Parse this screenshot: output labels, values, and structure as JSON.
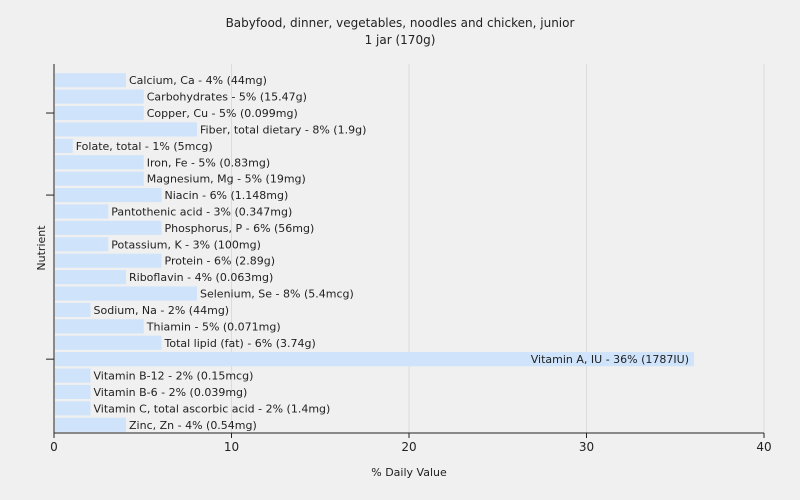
{
  "chart_data": {
    "type": "bar",
    "orientation": "horizontal",
    "title": "Babyfood, dinner, vegetables, noodles and chicken, junior",
    "subtitle": "1 jar (170g)",
    "xlabel": "% Daily Value",
    "ylabel": "Nutrient",
    "xlim": [
      0,
      40
    ],
    "xticks": [
      0,
      10,
      20,
      30,
      40
    ],
    "grid": true,
    "bar_color": "#cfe3fb",
    "categories": [
      "Calcium, Ca",
      "Carbohydrates",
      "Copper, Cu",
      "Fiber, total dietary",
      "Folate, total",
      "Iron, Fe",
      "Magnesium, Mg",
      "Niacin",
      "Pantothenic acid",
      "Phosphorus, P",
      "Potassium, K",
      "Protein",
      "Riboflavin",
      "Selenium, Se",
      "Sodium, Na",
      "Thiamin",
      "Total lipid (fat)",
      "Vitamin A, IU",
      "Vitamin B-12",
      "Vitamin B-6",
      "Vitamin C, total ascorbic acid",
      "Zinc, Zn"
    ],
    "values": [
      4,
      5,
      5,
      8,
      1,
      5,
      5,
      6,
      3,
      6,
      3,
      6,
      4,
      8,
      2,
      5,
      6,
      36,
      2,
      2,
      2,
      4
    ],
    "labels": [
      "Calcium, Ca - 4% (44mg)",
      "Carbohydrates - 5% (15.47g)",
      "Copper, Cu - 5% (0.099mg)",
      "Fiber, total dietary - 8% (1.9g)",
      "Folate, total - 1% (5mcg)",
      "Iron, Fe - 5% (0.83mg)",
      "Magnesium, Mg - 5% (19mg)",
      "Niacin - 6% (1.148mg)",
      "Pantothenic acid - 3% (0.347mg)",
      "Phosphorus, P - 6% (56mg)",
      "Potassium, K - 3% (100mg)",
      "Protein - 6% (2.89g)",
      "Riboflavin - 4% (0.063mg)",
      "Selenium, Se - 8% (5.4mcg)",
      "Sodium, Na - 2% (44mg)",
      "Thiamin - 5% (0.071mg)",
      "Total lipid (fat) - 6% (3.74g)",
      "Vitamin A, IU - 36% (1787IU)",
      "Vitamin B-12 - 2% (0.15mcg)",
      "Vitamin B-6 - 2% (0.039mg)",
      "Vitamin C, total ascorbic acid - 2% (1.4mg)",
      "Zinc, Zn - 4% (0.54mg)"
    ]
  }
}
